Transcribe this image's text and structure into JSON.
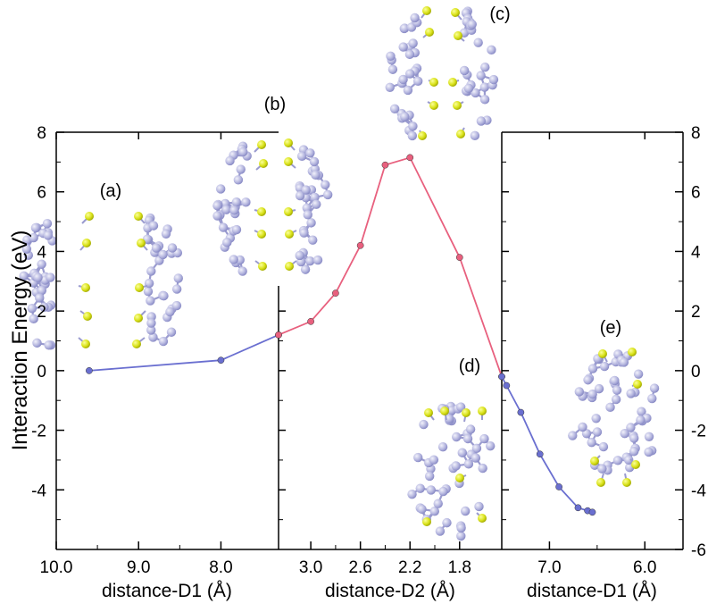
{
  "chart_data": {
    "type": "line",
    "ylabel": "Interaction Energy (eV)",
    "ylim": [
      -6,
      8
    ],
    "yticks": [
      -4,
      -2,
      0,
      2,
      4,
      6,
      8
    ],
    "right_yticks": [
      -6,
      -4,
      -2,
      0,
      2,
      4,
      6,
      8
    ],
    "grid": false,
    "panels": [
      {
        "xlabel": "distance-D1 (Å)",
        "xlim": [
          10.0,
          7.3
        ],
        "xticks": [
          10.0,
          9.0,
          8.0
        ],
        "xtick_labels": [
          "10.0",
          "9.0",
          "8.0"
        ],
        "series": [
          {
            "color": "#6a6fd0",
            "x": [
              9.6,
              8.0,
              7.3
            ],
            "y": [
              0.0,
              0.35,
              1.2
            ]
          }
        ]
      },
      {
        "xlabel": "distance-D2 (Å)",
        "xlim": [
          3.26,
          1.46
        ],
        "xticks": [
          3.0,
          2.6,
          2.2,
          1.8
        ],
        "xtick_labels": [
          "3.0",
          "2.6",
          "2.2",
          "1.8"
        ],
        "series": [
          {
            "color": "#e8607e",
            "x": [
              3.26,
              3.0,
              2.8,
              2.6,
              2.4,
              2.2,
              1.8,
              1.46
            ],
            "y": [
              1.2,
              1.65,
              2.6,
              4.2,
              6.9,
              7.15,
              3.8,
              -0.2
            ]
          }
        ]
      },
      {
        "xlabel": "distance-D1 (Å)",
        "xlim": [
          7.5,
          5.6
        ],
        "xticks": [
          7.0,
          6.0
        ],
        "xtick_labels": [
          "7.0",
          "6.0"
        ],
        "series": [
          {
            "color": "#6a6fd0",
            "x": [
              7.5,
              7.45,
              7.3,
              7.1,
              6.9,
              6.7,
              6.6,
              6.55
            ],
            "y": [
              -0.2,
              -0.5,
              -1.4,
              -2.8,
              -3.9,
              -4.6,
              -4.7,
              -4.75
            ]
          }
        ]
      }
    ],
    "annotations": [
      "(a)",
      "(b)",
      "(c)",
      "(d)",
      "(e)"
    ]
  }
}
